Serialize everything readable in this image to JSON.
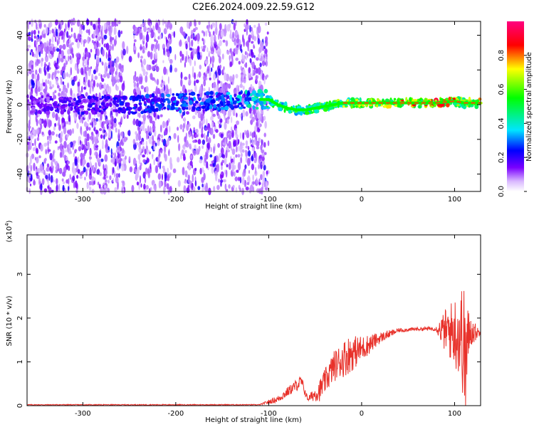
{
  "page_title": "C2E6.2024.009.22.59.G12",
  "chart_data": [
    {
      "type": "heatmap",
      "title": "C2E6.2024.009.22.59.G12",
      "xlabel": "Height of straight line (km)",
      "ylabel": "Frequency (Hz)",
      "xlim": [
        -360,
        128
      ],
      "ylim": [
        -50,
        48
      ],
      "x_ticks": [
        -300,
        -200,
        -100,
        0,
        100
      ],
      "x_tick_labels": [
        "-300",
        "-200",
        "-100",
        "0",
        "100"
      ],
      "y_ticks": [
        -40,
        -20,
        0,
        20,
        40
      ],
      "y_tick_labels": [
        "-40",
        "-20",
        "0",
        "20",
        "40"
      ],
      "grid": false,
      "colorbar": {
        "label": "Normalized spectral amplitude",
        "range": [
          0,
          1
        ],
        "ticks": [
          0.0,
          0.2,
          0.4,
          0.6,
          0.8
        ],
        "tick_labels": [
          "0.0",
          "0.2",
          "0.4",
          "0.6",
          "0.8"
        ],
        "colormap": [
          "#ffffff",
          "#7a00ff",
          "#0000ff",
          "#00e5ff",
          "#00ff00",
          "#ffff00",
          "#ff0000",
          "#ff0080"
        ]
      },
      "noise_band": {
        "x_start": -360,
        "x_end": -100,
        "description_level": 0.2
      },
      "central_trace": [
        {
          "x": -360,
          "y": 0,
          "amp": 0.15
        },
        {
          "x": -300,
          "y": 0,
          "amp": 0.2
        },
        {
          "x": -250,
          "y": 0,
          "amp": 0.25
        },
        {
          "x": -200,
          "y": 1,
          "amp": 0.3
        },
        {
          "x": -150,
          "y": 2,
          "amp": 0.3
        },
        {
          "x": -110,
          "y": 3,
          "amp": 0.45
        },
        {
          "x": -100,
          "y": 3,
          "amp": 0.5
        },
        {
          "x": -90,
          "y": 0,
          "amp": 0.55
        },
        {
          "x": -80,
          "y": -2,
          "amp": 0.55
        },
        {
          "x": -70,
          "y": -3,
          "amp": 0.55
        },
        {
          "x": -60,
          "y": -3,
          "amp": 0.55
        },
        {
          "x": -50,
          "y": -2,
          "amp": 0.55
        },
        {
          "x": -40,
          "y": -1,
          "amp": 0.6
        },
        {
          "x": -30,
          "y": 0,
          "amp": 0.6
        },
        {
          "x": -20,
          "y": 1,
          "amp": 0.65
        },
        {
          "x": 0,
          "y": 1,
          "amp": 0.7
        },
        {
          "x": 20,
          "y": 1,
          "amp": 0.75
        },
        {
          "x": 50,
          "y": 1,
          "amp": 0.8
        },
        {
          "x": 80,
          "y": 1,
          "amp": 0.85
        },
        {
          "x": 100,
          "y": 2,
          "amp": 0.8
        },
        {
          "x": 110,
          "y": 1,
          "amp": 0.6
        },
        {
          "x": 128,
          "y": 1,
          "amp": 0.75
        }
      ]
    },
    {
      "type": "line",
      "xlabel": "Height of straight line (km)",
      "ylabel": "SNR (10 * v/v)",
      "y_scale_label": "(x10",
      "y_scale_exponent": "4",
      "y_scale_close": ")",
      "xlim": [
        -360,
        128
      ],
      "ylim": [
        0,
        3.9
      ],
      "x_ticks": [
        -300,
        -200,
        -100,
        0,
        100
      ],
      "x_tick_labels": [
        "-300",
        "-200",
        "-100",
        "0",
        "100"
      ],
      "y_ticks": [
        0,
        1,
        2,
        3
      ],
      "y_tick_labels": [
        "0",
        "1",
        "2",
        "3"
      ],
      "grid": false,
      "series": [
        {
          "color": "#e8312a",
          "envelope": [
            {
              "x": -360,
              "y": 0.02,
              "amp": 0.01
            },
            {
              "x": -110,
              "y": 0.02,
              "amp": 0.01
            },
            {
              "x": -90,
              "y": 0.15,
              "amp": 0.08
            },
            {
              "x": -65,
              "y": 0.55,
              "amp": 0.15
            },
            {
              "x": -58,
              "y": 0.15,
              "amp": 0.05
            },
            {
              "x": -45,
              "y": 0.35,
              "amp": 0.25
            },
            {
              "x": -30,
              "y": 0.9,
              "amp": 0.35
            },
            {
              "x": -15,
              "y": 1.15,
              "amp": 0.45
            },
            {
              "x": 0,
              "y": 1.3,
              "amp": 0.3
            },
            {
              "x": 20,
              "y": 1.55,
              "amp": 0.12
            },
            {
              "x": 40,
              "y": 1.72,
              "amp": 0.05
            },
            {
              "x": 60,
              "y": 1.75,
              "amp": 0.04
            },
            {
              "x": 80,
              "y": 1.76,
              "amp": 0.05
            },
            {
              "x": 90,
              "y": 1.7,
              "amp": 0.5
            },
            {
              "x": 100,
              "y": 1.7,
              "amp": 0.8
            },
            {
              "x": 108,
              "y": 1.6,
              "amp": 1.2
            },
            {
              "x": 112,
              "y": 1.0,
              "amp": 1.6
            },
            {
              "x": 116,
              "y": 1.7,
              "amp": 0.4
            },
            {
              "x": 128,
              "y": 1.66,
              "amp": 0.04
            }
          ]
        }
      ]
    }
  ]
}
